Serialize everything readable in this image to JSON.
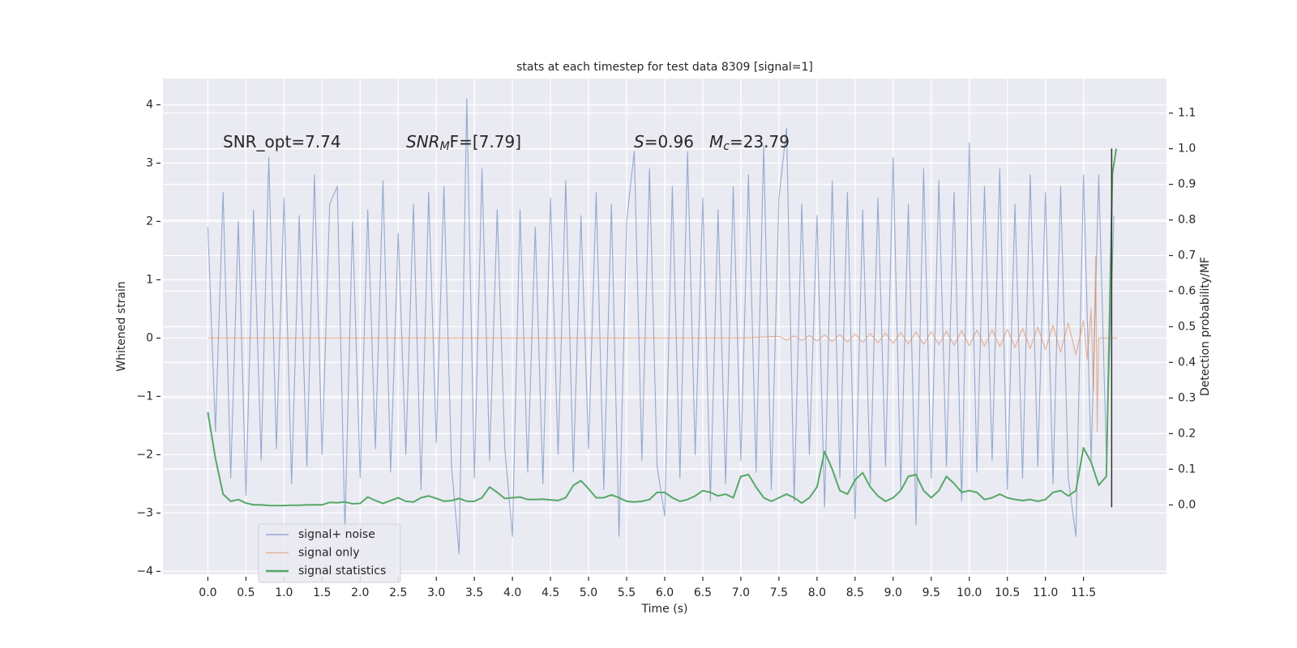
{
  "chart_data": {
    "type": "line",
    "title": "stats at each timestep for test data 8309 [signal=1]",
    "xlabel": "Time (s)",
    "ylabel": "Whitened strain",
    "y2label": "Detection probability/MF",
    "annotations": [
      {
        "text": "SNR_opt=7.74"
      },
      {
        "italic": "SNR",
        "sub": "M",
        "text": "F=[7.79]"
      },
      {
        "italic": "S",
        "text": "=0.96"
      },
      {
        "italic": "M",
        "sub": "c",
        "text": "=23.79"
      }
    ],
    "xlim": [
      -0.59,
      12.59
    ],
    "ylim": [
      -4.05,
      4.45
    ],
    "y2lim": [
      -0.195,
      1.197
    ],
    "xticks": [
      {
        "value": 0,
        "label": "0.0"
      },
      0.5,
      {
        "value": 1,
        "label": "1.0"
      },
      1.5,
      {
        "value": 2,
        "label": "2.0"
      },
      2.5,
      {
        "value": 3,
        "label": "3.0"
      },
      3.5,
      {
        "value": 4,
        "label": "4.0"
      },
      4.5,
      {
        "value": 5,
        "label": "5.0"
      },
      5.5,
      {
        "value": 6,
        "label": "6.0"
      },
      6.5,
      {
        "value": 7,
        "label": "7.0"
      },
      7.5,
      {
        "value": 8,
        "label": "8.0"
      },
      8.5,
      {
        "value": 9,
        "label": "9.0"
      },
      9.5,
      {
        "value": 10,
        "label": "10.0"
      },
      10.5,
      {
        "value": 11,
        "label": "11.0"
      },
      11.5
    ],
    "yticks": [
      {
        "value": -4,
        "label": "−4"
      },
      {
        "value": -3,
        "label": "−3"
      },
      {
        "value": -2,
        "label": "−2"
      },
      {
        "value": -1,
        "label": "−1"
      },
      0,
      1,
      2,
      3,
      4
    ],
    "y2ticks": [
      {
        "value": 0,
        "label": "0.0"
      },
      0.1,
      0.2,
      0.3,
      0.4,
      0.5,
      0.6,
      0.7,
      0.8,
      0.9,
      {
        "value": 1,
        "label": "1.0"
      },
      1.1
    ],
    "grid": true,
    "legend": "lower left",
    "series": [
      {
        "name": "signal+ noise",
        "color": "#4c72b0",
        "x": [
          0.0,
          0.1,
          0.2,
          0.3,
          0.4,
          0.5,
          0.6,
          0.7,
          0.8,
          0.9,
          1.0,
          1.1,
          1.2,
          1.3,
          1.4,
          1.5,
          1.6,
          1.7,
          1.8,
          1.9,
          2.0,
          2.1,
          2.2,
          2.3,
          2.4,
          2.5,
          2.6,
          2.7,
          2.8,
          2.9,
          3.0,
          3.1,
          3.2,
          3.3,
          3.4,
          3.5,
          3.6,
          3.7,
          3.8,
          3.9,
          4.0,
          4.1,
          4.2,
          4.3,
          4.4,
          4.5,
          4.6,
          4.7,
          4.8,
          4.9,
          5.0,
          5.1,
          5.2,
          5.3,
          5.4,
          5.5,
          5.6,
          5.7,
          5.8,
          5.9,
          6.0,
          6.1,
          6.2,
          6.3,
          6.4,
          6.5,
          6.6,
          6.7,
          6.8,
          6.9,
          7.0,
          7.1,
          7.2,
          7.3,
          7.4,
          7.5,
          7.6,
          7.7,
          7.8,
          7.9,
          8.0,
          8.1,
          8.2,
          8.3,
          8.4,
          8.5,
          8.6,
          8.7,
          8.8,
          8.9,
          9.0,
          9.1,
          9.2,
          9.3,
          9.4,
          9.5,
          9.6,
          9.7,
          9.8,
          9.9,
          10.0,
          10.1,
          10.2,
          10.3,
          10.4,
          10.5,
          10.6,
          10.7,
          10.8,
          10.9,
          11.0,
          11.1,
          11.2,
          11.3,
          11.4,
          11.5,
          11.6,
          11.7,
          11.8,
          11.9
        ],
        "values": [
          1.9,
          -1.6,
          2.5,
          -2.4,
          2.0,
          -2.7,
          2.2,
          -2.1,
          3.1,
          -1.9,
          2.4,
          -2.5,
          2.1,
          -2.2,
          2.8,
          -2.0,
          2.3,
          2.6,
          -3.3,
          2.0,
          -2.4,
          2.2,
          -1.9,
          2.7,
          -2.3,
          1.8,
          -2.0,
          2.3,
          -2.6,
          2.5,
          -1.8,
          2.6,
          -2.2,
          -3.7,
          4.1,
          -2.4,
          2.9,
          -2.1,
          2.2,
          -1.9,
          -3.4,
          2.2,
          -2.3,
          1.9,
          -2.5,
          2.4,
          -2.0,
          2.7,
          -2.3,
          2.1,
          -1.9,
          2.5,
          -2.6,
          2.3,
          -3.4,
          2.0,
          3.2,
          -2.1,
          2.9,
          -2.2,
          -3.05,
          2.6,
          -2.4,
          3.2,
          -2.0,
          2.4,
          -2.8,
          2.2,
          -2.5,
          2.6,
          -2.1,
          2.8,
          -2.3,
          3.3,
          -2.6,
          2.4,
          3.6,
          -2.8,
          2.3,
          -2.0,
          2.1,
          -2.9,
          2.7,
          -2.4,
          2.5,
          -3.1,
          2.2,
          -2.5,
          2.4,
          -2.2,
          3.1,
          -2.6,
          2.3,
          -3.2,
          2.9,
          -2.4,
          2.7,
          -2.2,
          2.5,
          -2.8,
          3.35,
          -2.3,
          2.6,
          -2.1,
          2.9,
          -2.6,
          2.3,
          -2.4,
          2.8,
          -2.2,
          2.5,
          -2.5,
          2.6,
          -2.4,
          -3.4,
          2.8,
          -2.1,
          2.8,
          -2.0,
          2.1
        ]
      },
      {
        "name": "signal only",
        "color": "#dd8452",
        "x": [
          0.0,
          7.0,
          7.5,
          7.6,
          7.7,
          7.8,
          7.9,
          8.0,
          8.1,
          8.2,
          8.3,
          8.4,
          8.5,
          8.6,
          8.7,
          8.8,
          8.9,
          9.0,
          9.1,
          9.2,
          9.3,
          9.4,
          9.5,
          9.6,
          9.7,
          9.8,
          9.9,
          10.0,
          10.1,
          10.2,
          10.3,
          10.4,
          10.5,
          10.6,
          10.7,
          10.8,
          10.9,
          11.0,
          11.1,
          11.2,
          11.3,
          11.4,
          11.5,
          11.55,
          11.6,
          11.63,
          11.66,
          11.68,
          11.7,
          11.95
        ],
        "values": [
          0,
          0,
          0.03,
          -0.034,
          0.038,
          -0.042,
          0.046,
          -0.05,
          0.054,
          -0.058,
          0.062,
          -0.066,
          0.07,
          -0.074,
          0.078,
          -0.082,
          0.086,
          -0.09,
          0.094,
          -0.098,
          0.102,
          -0.106,
          0.11,
          -0.114,
          0.118,
          -0.122,
          0.126,
          -0.13,
          0.134,
          -0.138,
          0.142,
          -0.146,
          0.15,
          -0.16,
          0.17,
          -0.18,
          0.19,
          -0.2,
          0.22,
          -0.24,
          0.26,
          -0.28,
          0.3,
          -0.36,
          0.5,
          -0.9,
          1.4,
          -1.6,
          0.0,
          0.0
        ]
      },
      {
        "name": "signal statistics",
        "color": "#55a868",
        "axis": "y2",
        "x": [
          0.0,
          0.1,
          0.2,
          0.3,
          0.4,
          0.5,
          0.6,
          0.7,
          0.8,
          0.9,
          1.0,
          1.1,
          1.2,
          1.3,
          1.4,
          1.5,
          1.6,
          1.7,
          1.8,
          1.9,
          2.0,
          2.1,
          2.2,
          2.3,
          2.4,
          2.5,
          2.6,
          2.7,
          2.8,
          2.9,
          3.0,
          3.1,
          3.2,
          3.3,
          3.4,
          3.5,
          3.6,
          3.7,
          3.8,
          3.9,
          4.0,
          4.1,
          4.2,
          4.3,
          4.4,
          4.5,
          4.6,
          4.7,
          4.8,
          4.9,
          5.0,
          5.1,
          5.2,
          5.3,
          5.4,
          5.5,
          5.6,
          5.7,
          5.8,
          5.9,
          6.0,
          6.1,
          6.2,
          6.3,
          6.4,
          6.5,
          6.6,
          6.7,
          6.8,
          6.9,
          7.0,
          7.1,
          7.2,
          7.3,
          7.4,
          7.5,
          7.6,
          7.7,
          7.8,
          7.9,
          8.0,
          8.1,
          8.2,
          8.3,
          8.4,
          8.5,
          8.6,
          8.7,
          8.8,
          8.9,
          9.0,
          9.1,
          9.2,
          9.3,
          9.4,
          9.5,
          9.6,
          9.7,
          9.8,
          9.9,
          10.0,
          10.1,
          10.2,
          10.3,
          10.4,
          10.5,
          10.6,
          10.7,
          10.8,
          10.9,
          11.0,
          11.1,
          11.2,
          11.3,
          11.4,
          11.5,
          11.6,
          11.7,
          11.8,
          11.88,
          11.93
        ],
        "values": [
          0.26,
          0.13,
          0.03,
          0.01,
          0.015,
          0.005,
          0,
          0,
          -0.002,
          -0.002,
          -0.002,
          -0.001,
          -0.001,
          0,
          0,
          0,
          0.007,
          0.006,
          0.008,
          0.003,
          0.004,
          0.022,
          0.012,
          0.004,
          0.012,
          0.02,
          0.01,
          0.008,
          0.02,
          0.025,
          0.018,
          0.01,
          0.012,
          0.018,
          0.01,
          0.01,
          0.02,
          0.05,
          0.035,
          0.018,
          0.02,
          0.022,
          0.015,
          0.015,
          0.016,
          0.014,
          0.012,
          0.02,
          0.055,
          0.068,
          0.045,
          0.02,
          0.02,
          0.028,
          0.02,
          0.01,
          0.008,
          0.01,
          0.015,
          0.035,
          0.035,
          0.02,
          0.01,
          0.015,
          0.025,
          0.04,
          0.035,
          0.025,
          0.03,
          0.02,
          0.08,
          0.085,
          0.05,
          0.02,
          0.01,
          0.02,
          0.03,
          0.02,
          0.005,
          0.02,
          0.05,
          0.15,
          0.1,
          0.04,
          0.03,
          0.07,
          0.09,
          0.05,
          0.025,
          0.01,
          0.02,
          0.04,
          0.08,
          0.085,
          0.04,
          0.02,
          0.04,
          0.08,
          0.06,
          0.035,
          0.04,
          0.035,
          0.015,
          0.02,
          0.03,
          0.02,
          0.015,
          0.012,
          0.015,
          0.01,
          0.015,
          0.035,
          0.04,
          0.025,
          0.04,
          0.16,
          0.12,
          0.055,
          0.08,
          0.93,
          1.0
        ]
      }
    ],
    "vline": {
      "x": 11.87,
      "ymin": -2.9,
      "ymax": 3.25,
      "color": "#333333"
    }
  }
}
